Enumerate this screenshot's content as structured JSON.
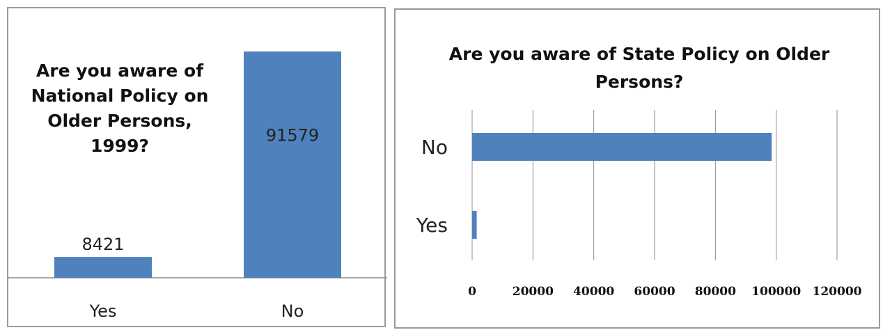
{
  "chart_data": [
    {
      "type": "bar",
      "title": "Are you aware of National Policy on Older Persons, 1999?",
      "categories": [
        "Yes",
        "No"
      ],
      "values": [
        8421,
        91579
      ],
      "data_labels": [
        "8421",
        "91579"
      ],
      "ylim": [
        0,
        100000
      ],
      "grid": false,
      "legend": "none",
      "bar_color": "#4f81bd"
    },
    {
      "type": "bar",
      "orientation": "horizontal",
      "title": "Are you aware of  State Policy on Older Persons?",
      "categories": [
        "Yes",
        "No"
      ],
      "values": [
        1500,
        98500
      ],
      "xlim": [
        0,
        120000
      ],
      "xticks": [
        "0",
        "20000",
        "40000",
        "60000",
        "80000",
        "100000",
        "120000"
      ],
      "grid": true,
      "legend": "none",
      "bar_color": "#4f81bd",
      "grid_color": "#8c8c8c"
    }
  ]
}
